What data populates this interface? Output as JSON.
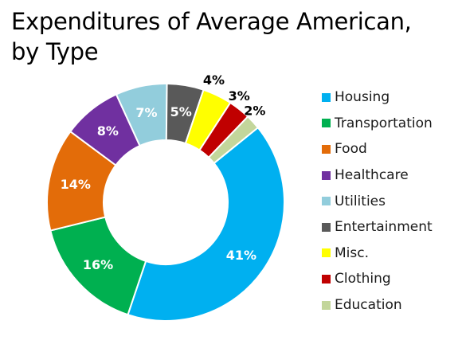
{
  "chart_data": {
    "type": "pie",
    "title": "Expenditures of Average American, by Type",
    "title_lines": [
      "Expenditures of Average American,",
      "by Type"
    ],
    "donut": true,
    "legend_position": "right",
    "slices": [
      {
        "name": "Housing",
        "value": 41,
        "label": "41%",
        "color": "#00b0f0",
        "label_color": "#ffffff",
        "label_outside": false
      },
      {
        "name": "Transportation",
        "value": 16,
        "label": "16%",
        "color": "#00b050",
        "label_color": "#ffffff",
        "label_outside": false
      },
      {
        "name": "Food",
        "value": 14,
        "label": "14%",
        "color": "#e36c09",
        "label_color": "#ffffff",
        "label_outside": false
      },
      {
        "name": "Healthcare",
        "value": 8,
        "label": "8%",
        "color": "#7030a0",
        "label_color": "#ffffff",
        "label_outside": false
      },
      {
        "name": "Utilities",
        "value": 7,
        "label": "7%",
        "color": "#92cddc",
        "label_color": "#ffffff",
        "label_outside": false
      },
      {
        "name": "Entertainment",
        "value": 5,
        "label": "5%",
        "color": "#595959",
        "label_color": "#ffffff",
        "label_outside": false
      },
      {
        "name": "Misc.",
        "value": 4,
        "label": "4%",
        "color": "#ffff00",
        "label_color": "#000000",
        "label_outside": true
      },
      {
        "name": "Clothing",
        "value": 3,
        "label": "3%",
        "color": "#c00000",
        "label_color": "#000000",
        "label_outside": true
      },
      {
        "name": "Education",
        "value": 2,
        "label": "2%",
        "color": "#c3d69b",
        "label_color": "#000000",
        "label_outside": true
      }
    ]
  }
}
